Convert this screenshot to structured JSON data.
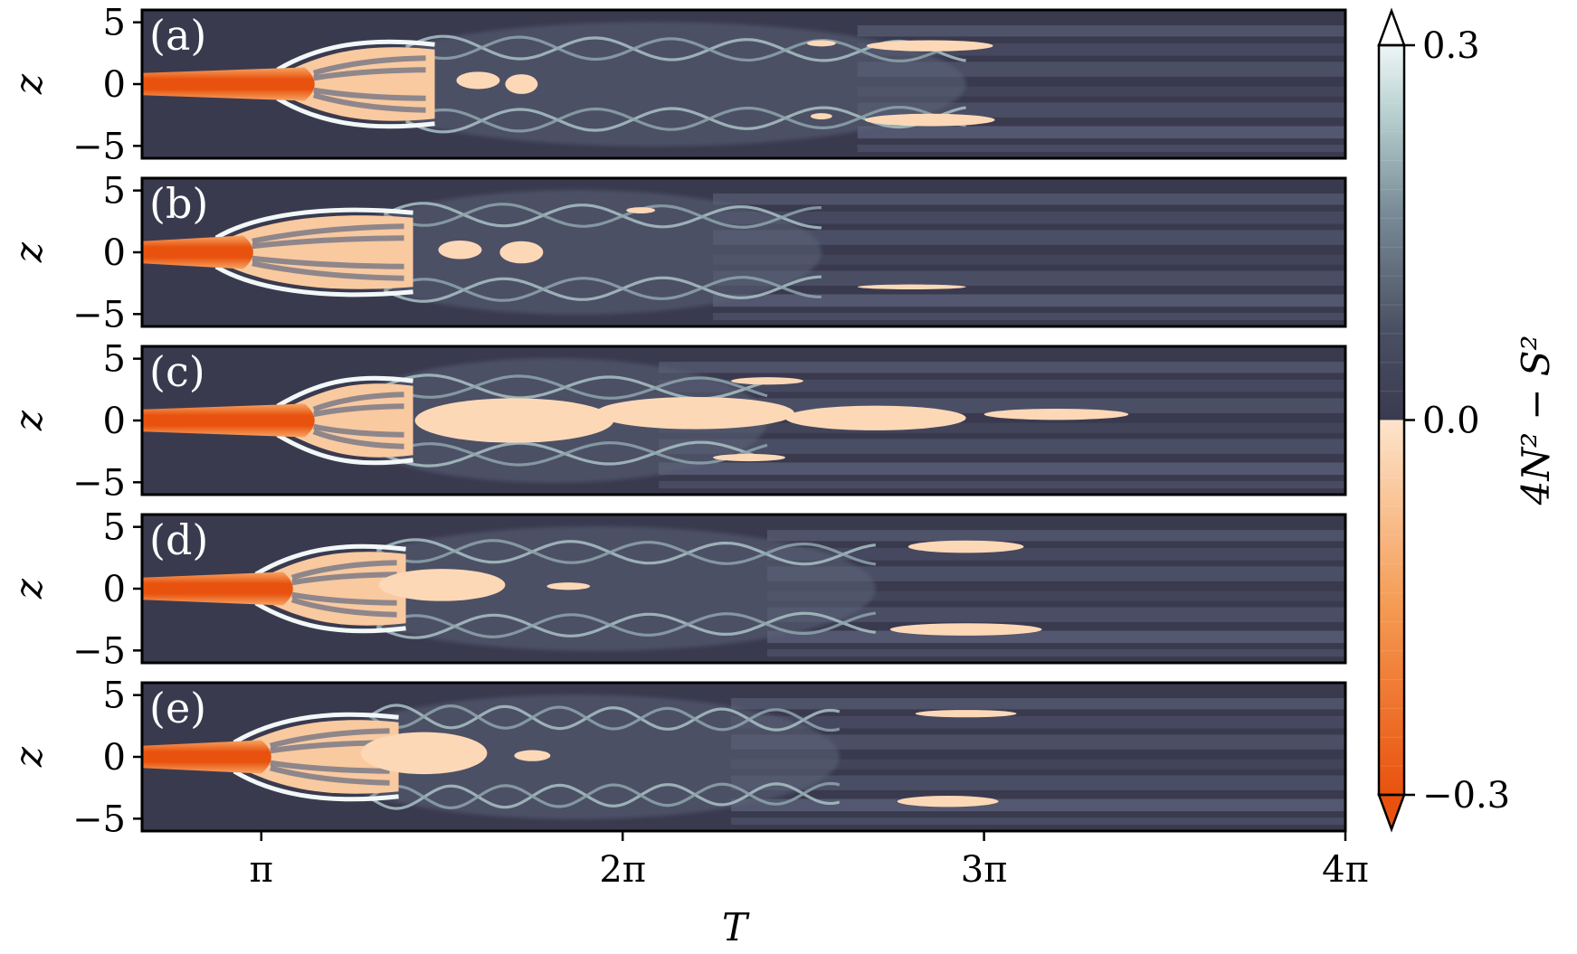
{
  "chart_data": {
    "type": "heatmap",
    "title": "",
    "xlabel": "T",
    "ylabel": "z",
    "x_range_over_pi": [
      0.67,
      4.0
    ],
    "y_range": [
      -6,
      6
    ],
    "x_ticks": [
      {
        "value_over_pi": 1,
        "label": "π"
      },
      {
        "value_over_pi": 2,
        "label": "2π"
      },
      {
        "value_over_pi": 3,
        "label": "3π"
      },
      {
        "value_over_pi": 4,
        "label": "4π"
      }
    ],
    "y_ticks": [
      {
        "value": 5,
        "label": "5"
      },
      {
        "value": 0,
        "label": "0"
      },
      {
        "value": -5,
        "label": "−5"
      }
    ],
    "colorbar": {
      "label": "4N² − S²",
      "range": [
        -0.3,
        0.3
      ],
      "ticks": [
        {
          "value": 0.3,
          "label": "0.3"
        },
        {
          "value": 0.0,
          "label": "0.0"
        },
        {
          "value": -0.3,
          "label": "−0.3"
        }
      ],
      "extend": "both",
      "levels": 26,
      "colors": {
        "negative": "#e8520e",
        "near_zero_negative": "#fde4cc",
        "near_zero_positive": "#3a3a4f",
        "positive_mid": "#7f8f9e",
        "positive_high": "#eef6f6"
      }
    },
    "panels": [
      {
        "label": "(a)",
        "jet_core_end_over_pi": 1.12,
        "flare_end_over_pi": 1.48,
        "braid_end_over_pi": 2.95,
        "braid_amplitude": 3.0,
        "braid_wavelength_over_pi": 0.42,
        "negative_patches": [
          {
            "x_over_pi": 1.6,
            "z": 0.3,
            "w": 0.12,
            "h": 1.4
          },
          {
            "x_over_pi": 1.72,
            "z": 0.0,
            "w": 0.09,
            "h": 1.6
          },
          {
            "x_over_pi": 2.55,
            "z": 3.3,
            "w": 0.08,
            "h": 0.5
          },
          {
            "x_over_pi": 2.85,
            "z": 3.1,
            "w": 0.35,
            "h": 0.9
          },
          {
            "x_over_pi": 2.55,
            "z": -2.6,
            "w": 0.06,
            "h": 0.5
          },
          {
            "x_over_pi": 2.85,
            "z": -2.9,
            "w": 0.36,
            "h": 1.0
          }
        ]
      },
      {
        "label": "(b)",
        "jet_core_end_over_pi": 0.95,
        "flare_end_over_pi": 1.42,
        "braid_end_over_pi": 2.55,
        "braid_amplitude": 3.1,
        "braid_wavelength_over_pi": 0.44,
        "negative_patches": [
          {
            "x_over_pi": 1.55,
            "z": 0.2,
            "w": 0.12,
            "h": 1.5
          },
          {
            "x_over_pi": 1.72,
            "z": 0.0,
            "w": 0.12,
            "h": 1.8
          },
          {
            "x_over_pi": 2.05,
            "z": 3.4,
            "w": 0.08,
            "h": 0.5
          },
          {
            "x_over_pi": 2.8,
            "z": -2.8,
            "w": 0.3,
            "h": 0.4
          }
        ]
      },
      {
        "label": "(c)",
        "jet_core_end_over_pi": 1.12,
        "flare_end_over_pi": 1.42,
        "braid_end_over_pi": 2.4,
        "braid_amplitude": 2.8,
        "braid_wavelength_over_pi": 0.5,
        "negative_patches": [
          {
            "x_over_pi": 1.7,
            "z": 0.0,
            "w": 0.55,
            "h": 3.6
          },
          {
            "x_over_pi": 2.2,
            "z": 0.6,
            "w": 0.55,
            "h": 2.6
          },
          {
            "x_over_pi": 2.7,
            "z": 0.2,
            "w": 0.5,
            "h": 2.0
          },
          {
            "x_over_pi": 2.4,
            "z": 3.2,
            "w": 0.2,
            "h": 0.6
          },
          {
            "x_over_pi": 2.35,
            "z": -3.0,
            "w": 0.2,
            "h": 0.6
          },
          {
            "x_over_pi": 3.2,
            "z": 0.5,
            "w": 0.4,
            "h": 0.9
          }
        ]
      },
      {
        "label": "(d)",
        "jet_core_end_over_pi": 1.06,
        "flare_end_over_pi": 1.4,
        "braid_end_over_pi": 2.7,
        "braid_amplitude": 3.1,
        "braid_wavelength_over_pi": 0.43,
        "negative_patches": [
          {
            "x_over_pi": 1.5,
            "z": 0.3,
            "w": 0.35,
            "h": 2.6
          },
          {
            "x_over_pi": 1.85,
            "z": 0.2,
            "w": 0.12,
            "h": 0.6
          },
          {
            "x_over_pi": 2.95,
            "z": 3.4,
            "w": 0.32,
            "h": 1.0
          },
          {
            "x_over_pi": 2.95,
            "z": -3.3,
            "w": 0.42,
            "h": 1.0
          }
        ]
      },
      {
        "label": "(e)",
        "jet_core_end_over_pi": 1.0,
        "flare_end_over_pi": 1.38,
        "braid_end_over_pi": 2.6,
        "braid_amplitude": 3.3,
        "braid_wavelength_over_pi": 0.3,
        "negative_patches": [
          {
            "x_over_pi": 1.45,
            "z": 0.3,
            "w": 0.35,
            "h": 3.4
          },
          {
            "x_over_pi": 1.75,
            "z": 0.1,
            "w": 0.1,
            "h": 0.9
          },
          {
            "x_over_pi": 2.95,
            "z": 3.5,
            "w": 0.28,
            "h": 0.6
          },
          {
            "x_over_pi": 2.9,
            "z": -3.6,
            "w": 0.28,
            "h": 0.9
          }
        ]
      }
    ],
    "grid": false
  }
}
